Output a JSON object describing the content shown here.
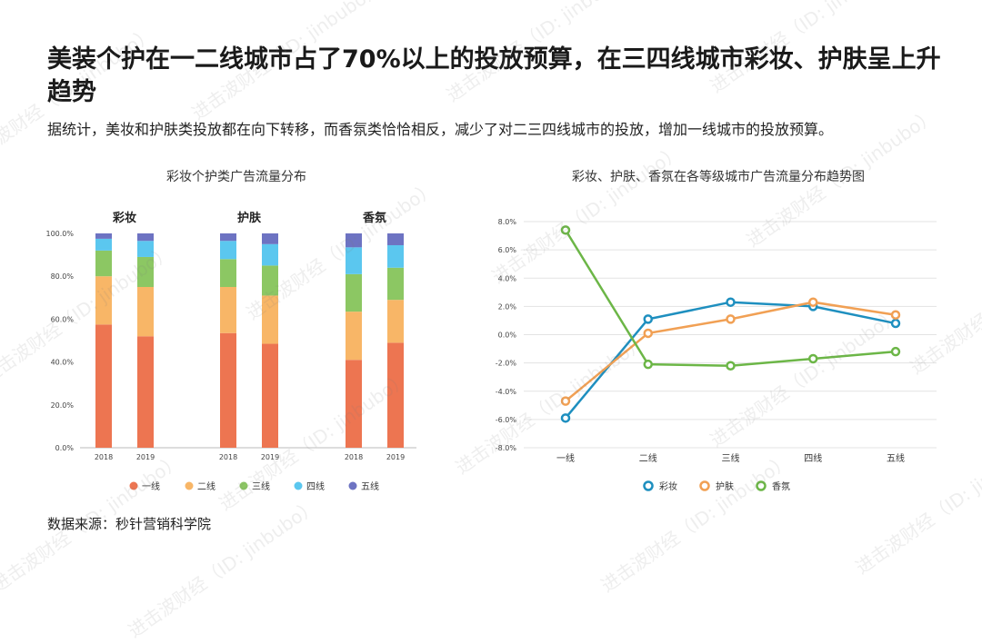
{
  "title": "美装个护在一二线城市占了70%以上的投放预算，在三四线城市彩妆、护肤呈上升趋势",
  "subtitle": "据统计，美妆和护肤类投放都在向下转移，而香氛类恰恰相反，减少了对二三四线城市的投放，增加一线城市的投放预算。",
  "source": "数据来源：秒针营销科学院",
  "watermark": "进击波财经（ID: jinbubo）",
  "chart_data": [
    {
      "type": "bar",
      "stacked": true,
      "title": "彩妆个护类广告流量分布",
      "groups": [
        "彩妆",
        "护肤",
        "香氛"
      ],
      "years": [
        "2018",
        "2019"
      ],
      "categories": [
        "一线",
        "二线",
        "三线",
        "四线",
        "五线"
      ],
      "colors": [
        "#ED7551",
        "#F8B667",
        "#8CC763",
        "#5BC7EF",
        "#6D73C2"
      ],
      "y_ticks": [
        "0.0%",
        "20.0%",
        "40.0%",
        "60.0%",
        "80.0%",
        "100.0%"
      ],
      "ylim": [
        0,
        100
      ],
      "legend_position": "bottom",
      "stacks": [
        [
          57.5,
          22.5,
          12.0,
          5.5,
          2.5
        ],
        [
          52.0,
          23.0,
          14.0,
          7.5,
          3.5
        ],
        [
          53.5,
          21.5,
          13.0,
          8.5,
          3.5
        ],
        [
          48.5,
          22.5,
          14.0,
          10.0,
          5.0
        ],
        [
          41.0,
          22.5,
          17.5,
          12.5,
          6.5
        ],
        [
          49.0,
          20.0,
          15.0,
          10.5,
          5.5
        ]
      ]
    },
    {
      "type": "line",
      "title": "彩妆、护肤、香氛在各等级城市广告流量分布趋势图",
      "x": [
        "一线",
        "二线",
        "三线",
        "四线",
        "五线"
      ],
      "y_ticks": [
        "8.0%",
        "6.0%",
        "4.0%",
        "2.0%",
        "0.0%",
        "-2.0%",
        "-4.0%",
        "-6.0%",
        "-8.0%"
      ],
      "ylim": [
        -8,
        8
      ],
      "grid": true,
      "legend_position": "bottom",
      "series": [
        {
          "name": "彩妆",
          "color": "#1E8FBF",
          "values": [
            -5.9,
            1.1,
            2.3,
            2.0,
            0.8
          ]
        },
        {
          "name": "护肤",
          "color": "#F1A054",
          "values": [
            -4.7,
            0.1,
            1.1,
            2.3,
            1.4
          ]
        },
        {
          "name": "香氛",
          "color": "#6CB647",
          "values": [
            7.4,
            -2.1,
            -2.2,
            -1.7,
            -1.2
          ]
        }
      ]
    }
  ]
}
